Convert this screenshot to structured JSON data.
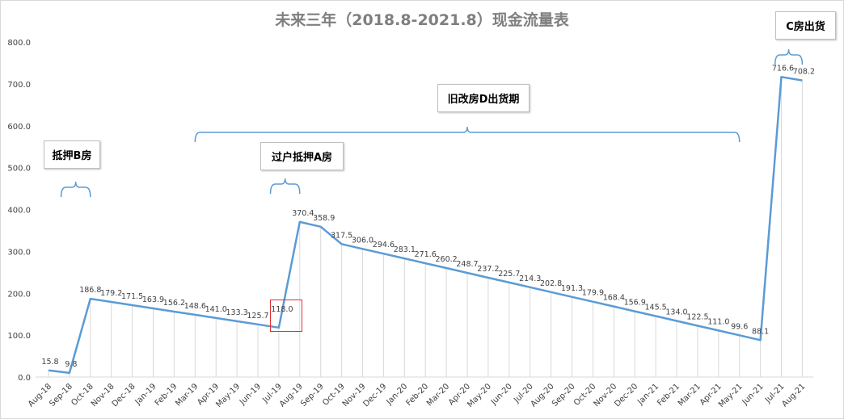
{
  "chart_data": {
    "type": "line",
    "title": "未来三年（2018.8-2021.8）现金流量表",
    "categories": [
      "Aug-18",
      "Sep-18",
      "Oct-18",
      "Nov-18",
      "Dec-18",
      "Jan-19",
      "Feb-19",
      "Mar-19",
      "Apr-19",
      "May-19",
      "Jun-19",
      "Jul-19",
      "Aug-19",
      "Sep-19",
      "Oct-19",
      "Nov-19",
      "Dec-19",
      "Jan-20",
      "Feb-20",
      "Mar-20",
      "Apr-20",
      "May-20",
      "Jun-20",
      "Jul-20",
      "Aug-20",
      "Sep-20",
      "Oct-20",
      "Nov-20",
      "Dec-20",
      "Jan-21",
      "Feb-21",
      "Mar-21",
      "Apr-21",
      "May-21",
      "Jun-21",
      "Jul-21",
      "Aug-21"
    ],
    "values": [
      15.8,
      9.8,
      186.8,
      179.2,
      171.5,
      163.9,
      156.2,
      148.6,
      141.0,
      133.3,
      125.7,
      118.0,
      370.4,
      358.9,
      317.5,
      306.0,
      294.6,
      283.1,
      271.6,
      260.2,
      248.7,
      237.2,
      225.7,
      214.3,
      202.8,
      191.3,
      179.9,
      168.4,
      156.9,
      145.5,
      134.0,
      122.5,
      111.0,
      99.6,
      88.1,
      716.6,
      708.2
    ],
    "value_labels": [
      "15.8",
      "9.8",
      "186.8",
      "179.2",
      "171.5",
      "163.9",
      "156.2",
      "148.6",
      "141.0",
      "133.3",
      "125.7",
      "118.0",
      "370.4",
      "358.9",
      "317.5",
      "306.0",
      "294.6",
      "283.1",
      "271.6",
      "260.2",
      "248.7",
      "237.2",
      "225.7",
      "214.3",
      "202.8",
      "191.3",
      "179.9",
      "168.4",
      "156.9",
      "145.5",
      "134.0",
      "122.5",
      "111.0",
      "99.6",
      "88.1",
      "716.6",
      "708.2"
    ],
    "y_ticks": [
      "0.0",
      "100.0",
      "200.0",
      "300.0",
      "400.0",
      "500.0",
      "600.0",
      "700.0",
      "800.0"
    ],
    "ylim": [
      0,
      800
    ],
    "xlabel": "",
    "ylabel": "",
    "grid": false,
    "colors": {
      "line": "#5b9bd5",
      "drop_line": "#d9d9d9",
      "axis": "#d9d9d9",
      "text": "#404040",
      "title": "#7f7f7f",
      "highlight": "#e03030"
    }
  },
  "annotations": [
    {
      "key": "b",
      "text": "抵押B房",
      "start": 0.6,
      "end": 2.0
    },
    {
      "key": "a",
      "text": "过户抵押A房",
      "start": 10.6,
      "end": 12.0
    },
    {
      "key": "d",
      "text": "旧改房D出货期",
      "start": 7.0,
      "end": 33.0
    },
    {
      "key": "c",
      "text": "C房出货",
      "start": 34.7,
      "end": 36.0
    }
  ]
}
